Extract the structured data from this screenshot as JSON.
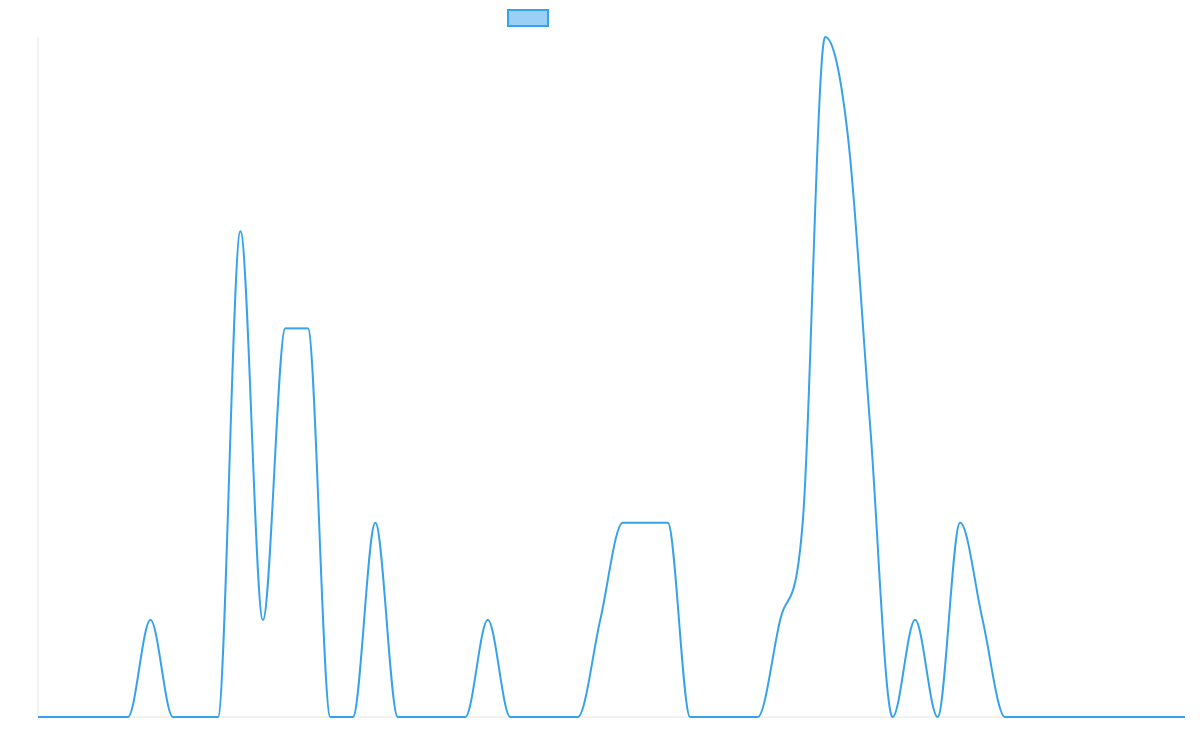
{
  "chart_data": {
    "type": "line",
    "title": "",
    "xlabel": "",
    "ylabel": "",
    "legend": {
      "position": "top-center",
      "entries": [
        {
          "name": "",
          "color": "#36a2eb",
          "fill": "#9ad0f5"
        }
      ]
    },
    "grid": false,
    "xlim": [
      0,
      51
    ],
    "ylim": [
      0,
      7
    ],
    "x": [
      0,
      1,
      2,
      3,
      4,
      5,
      6,
      7,
      8,
      9,
      10,
      11,
      12,
      13,
      14,
      15,
      16,
      17,
      18,
      19,
      20,
      21,
      22,
      23,
      24,
      25,
      26,
      27,
      28,
      29,
      30,
      31,
      32,
      33,
      34,
      35,
      36,
      37,
      38,
      39,
      40,
      41,
      42,
      43,
      44,
      45,
      46,
      47,
      48,
      49,
      50,
      51
    ],
    "series": [
      {
        "name": "",
        "color": "#36a2eb",
        "values": [
          0,
          0,
          0,
          0,
          0,
          1,
          0,
          0,
          0,
          5,
          1,
          4,
          4,
          0,
          0,
          2,
          0,
          0,
          0,
          0,
          1,
          0,
          0,
          0,
          0,
          1,
          2,
          2,
          2,
          0,
          0,
          0,
          0,
          1,
          2,
          7,
          6,
          3,
          0,
          1,
          0,
          2,
          1,
          0,
          0,
          0,
          0,
          0,
          0,
          0,
          0,
          0
        ]
      }
    ]
  }
}
